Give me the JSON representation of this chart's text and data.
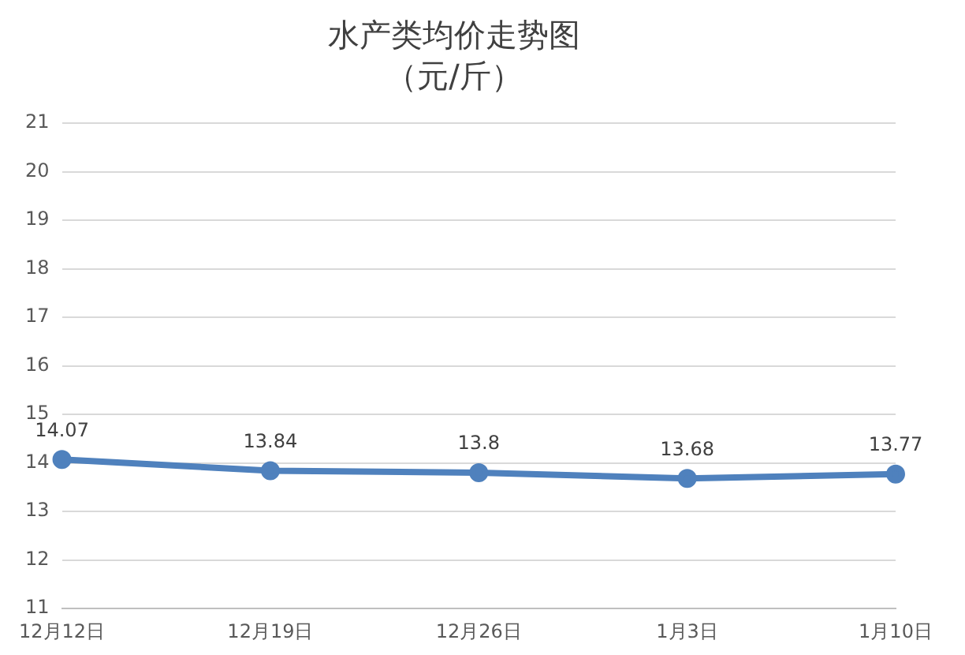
{
  "chart_data": {
    "type": "line",
    "title": "水产类均价走势图",
    "subtitle": "（元/斤）",
    "categories": [
      "12月12日",
      "12月19日",
      "12月26日",
      "1月3日",
      "1月10日"
    ],
    "series": [
      {
        "color": "#4f81bd",
        "values": [
          14.07,
          13.84,
          13.8,
          13.68,
          13.77
        ]
      }
    ],
    "ylim": [
      11,
      21
    ],
    "yticks": [
      11,
      12,
      13,
      14,
      15,
      16,
      17,
      18,
      19,
      20,
      21
    ],
    "grid": "y",
    "legend": false,
    "marker": "circle",
    "line_style": "solid",
    "data_labels": true
  }
}
